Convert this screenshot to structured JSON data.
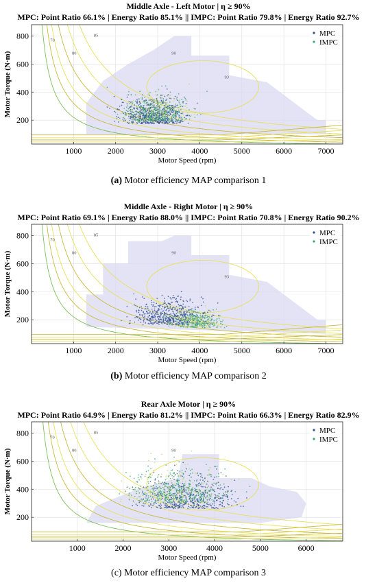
{
  "legend": {
    "mpc": "MPC",
    "impc": "IMPC"
  },
  "colors": {
    "region": "#d9d9f2",
    "contour": "#e8e05a",
    "contour_dark": "#c9b93a",
    "contour_green": "#7cbf5a",
    "mpc": "#2f4f8f",
    "impc": "#3aa876",
    "impc_light": "#b8d96a",
    "grid": "#dddddd"
  },
  "panels": [
    {
      "title_line1": "Middle Axle - Left Motor  |  η ≥ 90%",
      "title_line2": "MPC: Point Ratio 66.1% | Energy Ratio 85.1%  ||  IMPC: Point Ratio 79.8% | Energy Ratio 92.7%",
      "caption_letter": "(a)",
      "caption_text": " Motor efficiency MAP comparison 1",
      "chart_data": {
        "type": "scatter",
        "xlabel": "Motor Speed (rpm)",
        "ylabel": "Motor Torque (N·m)",
        "xlim": [
          0,
          7400
        ],
        "ylim": [
          30,
          880
        ],
        "xticks": [
          1000,
          2000,
          3000,
          4000,
          5000,
          6000,
          7000
        ],
        "yticks": [
          200,
          400,
          600,
          800
        ],
        "grid": true,
        "legend_position": "top-right",
        "high_efficiency_region": [
          [
            1300,
            100
          ],
          [
            1300,
            320
          ],
          [
            1700,
            480
          ],
          [
            2300,
            600
          ],
          [
            2900,
            700
          ],
          [
            3400,
            800
          ],
          [
            3800,
            800
          ],
          [
            3800,
            660
          ],
          [
            4700,
            660
          ],
          [
            4700,
            520
          ],
          [
            5600,
            470
          ],
          [
            6800,
            200
          ],
          [
            7000,
            200
          ],
          [
            7000,
            100
          ]
        ],
        "contour_labels": [
          "70",
          "80",
          "85",
          "90",
          "93"
        ],
        "series": [
          {
            "name": "MPC",
            "cluster": {
              "x_center": 2900,
              "x_spread": 900,
              "y_center": 230,
              "y_spread": 180,
              "count": 620
            }
          },
          {
            "name": "IMPC",
            "cluster": {
              "x_center": 3000,
              "x_spread": 1000,
              "y_center": 250,
              "y_spread": 200,
              "count": 520
            }
          }
        ]
      }
    },
    {
      "title_line1": "Middle Axle - Right Motor  |  η ≥ 90%",
      "title_line2": "MPC: Point Ratio 69.1% | Energy Ratio 88.0%  ||  IMPC: Point Ratio 70.8% | Energy Ratio 90.2%",
      "caption_letter": "(b)",
      "caption_text": " Motor efficiency MAP comparison 2",
      "chart_data": {
        "type": "scatter",
        "xlabel": "Motor Speed (rpm)",
        "ylabel": "Motor Torque (N·m)",
        "xlim": [
          0,
          7400
        ],
        "ylim": [
          30,
          880
        ],
        "xticks": [
          1000,
          2000,
          3000,
          4000,
          5000,
          6000,
          7000
        ],
        "yticks": [
          200,
          400,
          600,
          800
        ],
        "grid": true,
        "legend_position": "top-right",
        "high_efficiency_region": [
          [
            1300,
            150
          ],
          [
            1300,
            380
          ],
          [
            1700,
            380
          ],
          [
            1700,
            600
          ],
          [
            2300,
            600
          ],
          [
            2300,
            760
          ],
          [
            3100,
            760
          ],
          [
            3400,
            800
          ],
          [
            3800,
            800
          ],
          [
            3800,
            660
          ],
          [
            4700,
            660
          ],
          [
            4700,
            520
          ],
          [
            5600,
            470
          ],
          [
            6800,
            200
          ],
          [
            7000,
            200
          ],
          [
            7000,
            100
          ]
        ],
        "contour_labels": [
          "70",
          "80",
          "85",
          "90",
          "93"
        ],
        "series": [
          {
            "name": "MPC",
            "cluster": {
              "x_center": 3300,
              "x_spread": 1100,
              "y_center": 220,
              "y_spread": 190,
              "count": 560
            }
          },
          {
            "name": "IMPC",
            "cluster": {
              "x_center": 3900,
              "x_spread": 700,
              "y_center": 180,
              "y_spread": 120,
              "count": 380
            }
          }
        ]
      }
    },
    {
      "title_line1": "Rear Axle Motor   |  η ≥ 90%",
      "title_line2": "MPC: Point Ratio 64.9% | Energy Ratio 81.2%   ||   IMPC: Point Ratio 66.3% | Energy Ratio 82.9%",
      "caption_letter": "(c)",
      "caption_text": " Motor efficiency MAP comparison 3",
      "chart_data": {
        "type": "scatter",
        "xlabel": "Motor Speed (rpm)",
        "ylabel": "Motor Torque (N·m)",
        "xlim": [
          0,
          6800
        ],
        "ylim": [
          30,
          880
        ],
        "xticks": [
          1000,
          2000,
          3000,
          4000,
          5000,
          6000
        ],
        "yticks": [
          200,
          400,
          600,
          800
        ],
        "grid": true,
        "legend_position": "top-right",
        "high_efficiency_region": [
          [
            1200,
            160
          ],
          [
            1400,
            280
          ],
          [
            2000,
            360
          ],
          [
            2500,
            420
          ],
          [
            3200,
            480
          ],
          [
            3300,
            650
          ],
          [
            4100,
            650
          ],
          [
            4100,
            480
          ],
          [
            4800,
            480
          ],
          [
            5200,
            420
          ],
          [
            5800,
            380
          ],
          [
            6000,
            300
          ],
          [
            5900,
            200
          ],
          [
            5000,
            160
          ]
        ],
        "contour_labels": [
          "70",
          "80",
          "85",
          "90"
        ],
        "series": [
          {
            "name": "MPC",
            "cluster": {
              "x_center": 3400,
              "x_spread": 1200,
              "y_center": 330,
              "y_spread": 230,
              "count": 520
            }
          },
          {
            "name": "IMPC",
            "cluster": {
              "x_center": 3200,
              "x_spread": 1300,
              "y_center": 380,
              "y_spread": 260,
              "count": 600
            }
          }
        ]
      }
    }
  ]
}
